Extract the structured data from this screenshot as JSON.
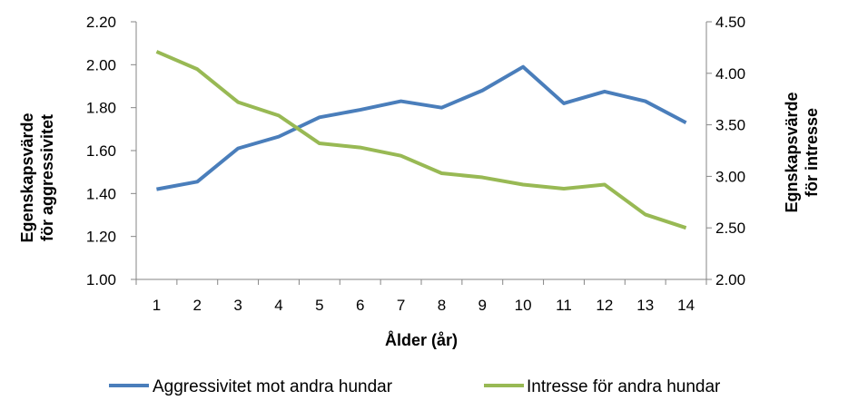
{
  "chart_data": {
    "type": "line",
    "xlabel": "Ålder (år)",
    "ylabel_left": [
      "Egenskapsvärde",
      "för aggressivitet"
    ],
    "ylabel_right": [
      "Egnskapsvärde",
      "för intresse"
    ],
    "categories": [
      "1",
      "2",
      "3",
      "4",
      "5",
      "6",
      "7",
      "8",
      "9",
      "10",
      "11",
      "12",
      "13",
      "14"
    ],
    "y_left": {
      "lim": [
        1.0,
        2.2
      ],
      "ticks": [
        "1.00",
        "1.20",
        "1.40",
        "1.60",
        "1.80",
        "2.00",
        "2.20"
      ]
    },
    "y_right": {
      "lim": [
        2.0,
        4.5
      ],
      "ticks": [
        "2.00",
        "2.50",
        "3.00",
        "3.50",
        "4.00",
        "4.50"
      ]
    },
    "grid": false,
    "legend_position": "bottom",
    "series": [
      {
        "name": "Aggressivitet mot andra hundar",
        "axis": "left",
        "color": "#4a7ebb",
        "values": [
          1.42,
          1.455,
          1.61,
          1.665,
          1.755,
          1.79,
          1.83,
          1.8,
          1.88,
          1.99,
          1.82,
          1.875,
          1.83,
          1.73
        ]
      },
      {
        "name": "Intresse för andra hundar",
        "axis": "right",
        "color": "#98b954",
        "values": [
          4.21,
          4.04,
          3.72,
          3.59,
          3.32,
          3.28,
          3.2,
          3.03,
          2.99,
          2.92,
          2.88,
          2.92,
          2.63,
          2.5
        ]
      }
    ]
  }
}
